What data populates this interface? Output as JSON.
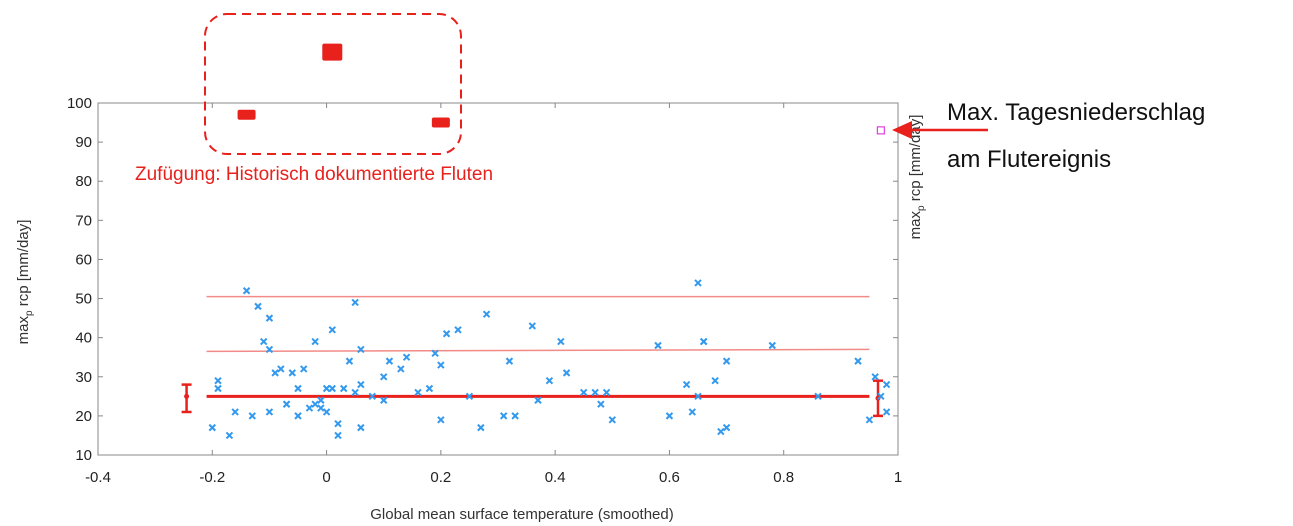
{
  "chart_data": {
    "type": "scatter",
    "xlabel": "Global mean surface temperature (smoothed)",
    "ylabel": "max_p rcp [mm/day]",
    "ylabel_right": "max_p rcp [mm/day]",
    "xlim": [
      -0.4,
      1.0
    ],
    "ylim": [
      10,
      100
    ],
    "x_ticks": [
      -0.4,
      -0.2,
      0,
      0.2,
      0.4,
      0.6,
      0.8,
      1
    ],
    "x_tick_labels": [
      "-0.4",
      "-0.2",
      "0",
      "0.2",
      "0.4",
      "0.6",
      "0.8",
      "1"
    ],
    "y_ticks": [
      10,
      20,
      30,
      40,
      50,
      60,
      70,
      80,
      90,
      100
    ],
    "y_tick_labels": [
      "10",
      "20",
      "30",
      "40",
      "50",
      "60",
      "70",
      "80",
      "90",
      "100"
    ],
    "series": [
      {
        "color": "#3399ee",
        "marker": "x",
        "points": [
          [
            -0.2,
            17
          ],
          [
            -0.19,
            29
          ],
          [
            -0.19,
            27
          ],
          [
            -0.17,
            15
          ],
          [
            -0.16,
            21
          ],
          [
            -0.14,
            52
          ],
          [
            -0.13,
            20
          ],
          [
            -0.12,
            48
          ],
          [
            -0.11,
            39
          ],
          [
            -0.1,
            45
          ],
          [
            -0.1,
            37
          ],
          [
            -0.1,
            21
          ],
          [
            -0.09,
            31
          ],
          [
            -0.08,
            32
          ],
          [
            -0.07,
            23
          ],
          [
            -0.07,
            23
          ],
          [
            -0.06,
            31
          ],
          [
            -0.05,
            27
          ],
          [
            -0.05,
            20
          ],
          [
            -0.04,
            32
          ],
          [
            -0.03,
            22
          ],
          [
            -0.02,
            23
          ],
          [
            -0.02,
            39
          ],
          [
            -0.01,
            24
          ],
          [
            -0.01,
            22
          ],
          [
            0.0,
            27
          ],
          [
            0.0,
            21
          ],
          [
            0.01,
            42
          ],
          [
            0.01,
            27
          ],
          [
            0.02,
            18
          ],
          [
            0.02,
            15
          ],
          [
            0.03,
            27
          ],
          [
            0.04,
            34
          ],
          [
            0.05,
            49
          ],
          [
            0.05,
            26
          ],
          [
            0.06,
            37
          ],
          [
            0.06,
            28
          ],
          [
            0.06,
            17
          ],
          [
            0.08,
            25
          ],
          [
            0.1,
            30
          ],
          [
            0.1,
            24
          ],
          [
            0.11,
            34
          ],
          [
            0.13,
            32
          ],
          [
            0.14,
            35
          ],
          [
            0.16,
            26
          ],
          [
            0.18,
            27
          ],
          [
            0.19,
            36
          ],
          [
            0.2,
            19
          ],
          [
            0.2,
            33
          ],
          [
            0.21,
            41
          ],
          [
            0.23,
            42
          ],
          [
            0.25,
            25
          ],
          [
            0.27,
            17
          ],
          [
            0.28,
            46
          ],
          [
            0.31,
            20
          ],
          [
            0.32,
            34
          ],
          [
            0.33,
            20
          ],
          [
            0.36,
            43
          ],
          [
            0.37,
            24
          ],
          [
            0.39,
            29
          ],
          [
            0.41,
            39
          ],
          [
            0.42,
            31
          ],
          [
            0.45,
            26
          ],
          [
            0.47,
            26
          ],
          [
            0.48,
            23
          ],
          [
            0.49,
            26
          ],
          [
            0.5,
            19
          ],
          [
            0.58,
            38
          ],
          [
            0.6,
            20
          ],
          [
            0.63,
            28
          ],
          [
            0.64,
            21
          ],
          [
            0.65,
            25
          ],
          [
            0.65,
            54
          ],
          [
            0.66,
            39
          ],
          [
            0.66,
            39
          ],
          [
            0.68,
            29
          ],
          [
            0.69,
            16
          ],
          [
            0.7,
            17
          ],
          [
            0.7,
            34
          ],
          [
            0.78,
            38
          ],
          [
            0.86,
            25
          ],
          [
            0.93,
            34
          ],
          [
            0.95,
            19
          ],
          [
            0.96,
            30
          ],
          [
            0.97,
            25
          ],
          [
            0.98,
            28
          ],
          [
            0.98,
            21
          ]
        ]
      }
    ],
    "fit_lines": [
      {
        "role": "trend",
        "color": "#e8211d",
        "from": [
          -0.21,
          25
        ],
        "to": [
          0.95,
          25
        ]
      },
      {
        "role": "upper-1",
        "color": "#f28b87",
        "from": [
          -0.21,
          36.5
        ],
        "to": [
          0.95,
          37
        ]
      },
      {
        "role": "upper-2",
        "color": "#f28b87",
        "from": [
          -0.21,
          50.5
        ],
        "to": [
          0.95,
          50.5
        ]
      }
    ],
    "error_bars": [
      {
        "x": -0.245,
        "center": 25,
        "low": 21,
        "high": 28
      },
      {
        "x": 0.965,
        "center": 24.5,
        "low": 20,
        "high": 29
      }
    ],
    "flood_marker": {
      "x": 0.97,
      "y": 93,
      "color": "#e040e0"
    },
    "historic_floods": [
      {
        "x": -0.14,
        "y": 97
      },
      {
        "x": 0.01,
        "y": 113
      },
      {
        "x": 0.2,
        "y": 95
      }
    ],
    "grid": false,
    "legend": "none"
  },
  "annotations": {
    "historic_label": "Zufügung: Historisch dokumentierte Fluten",
    "flood_label_line1": "Max. Tagesniederschlag",
    "flood_label_line2": "am Flutereignis"
  },
  "colors": {
    "annotation_red": "#e8211d",
    "scatter_blue": "#3399ee",
    "axis": "#888888"
  }
}
